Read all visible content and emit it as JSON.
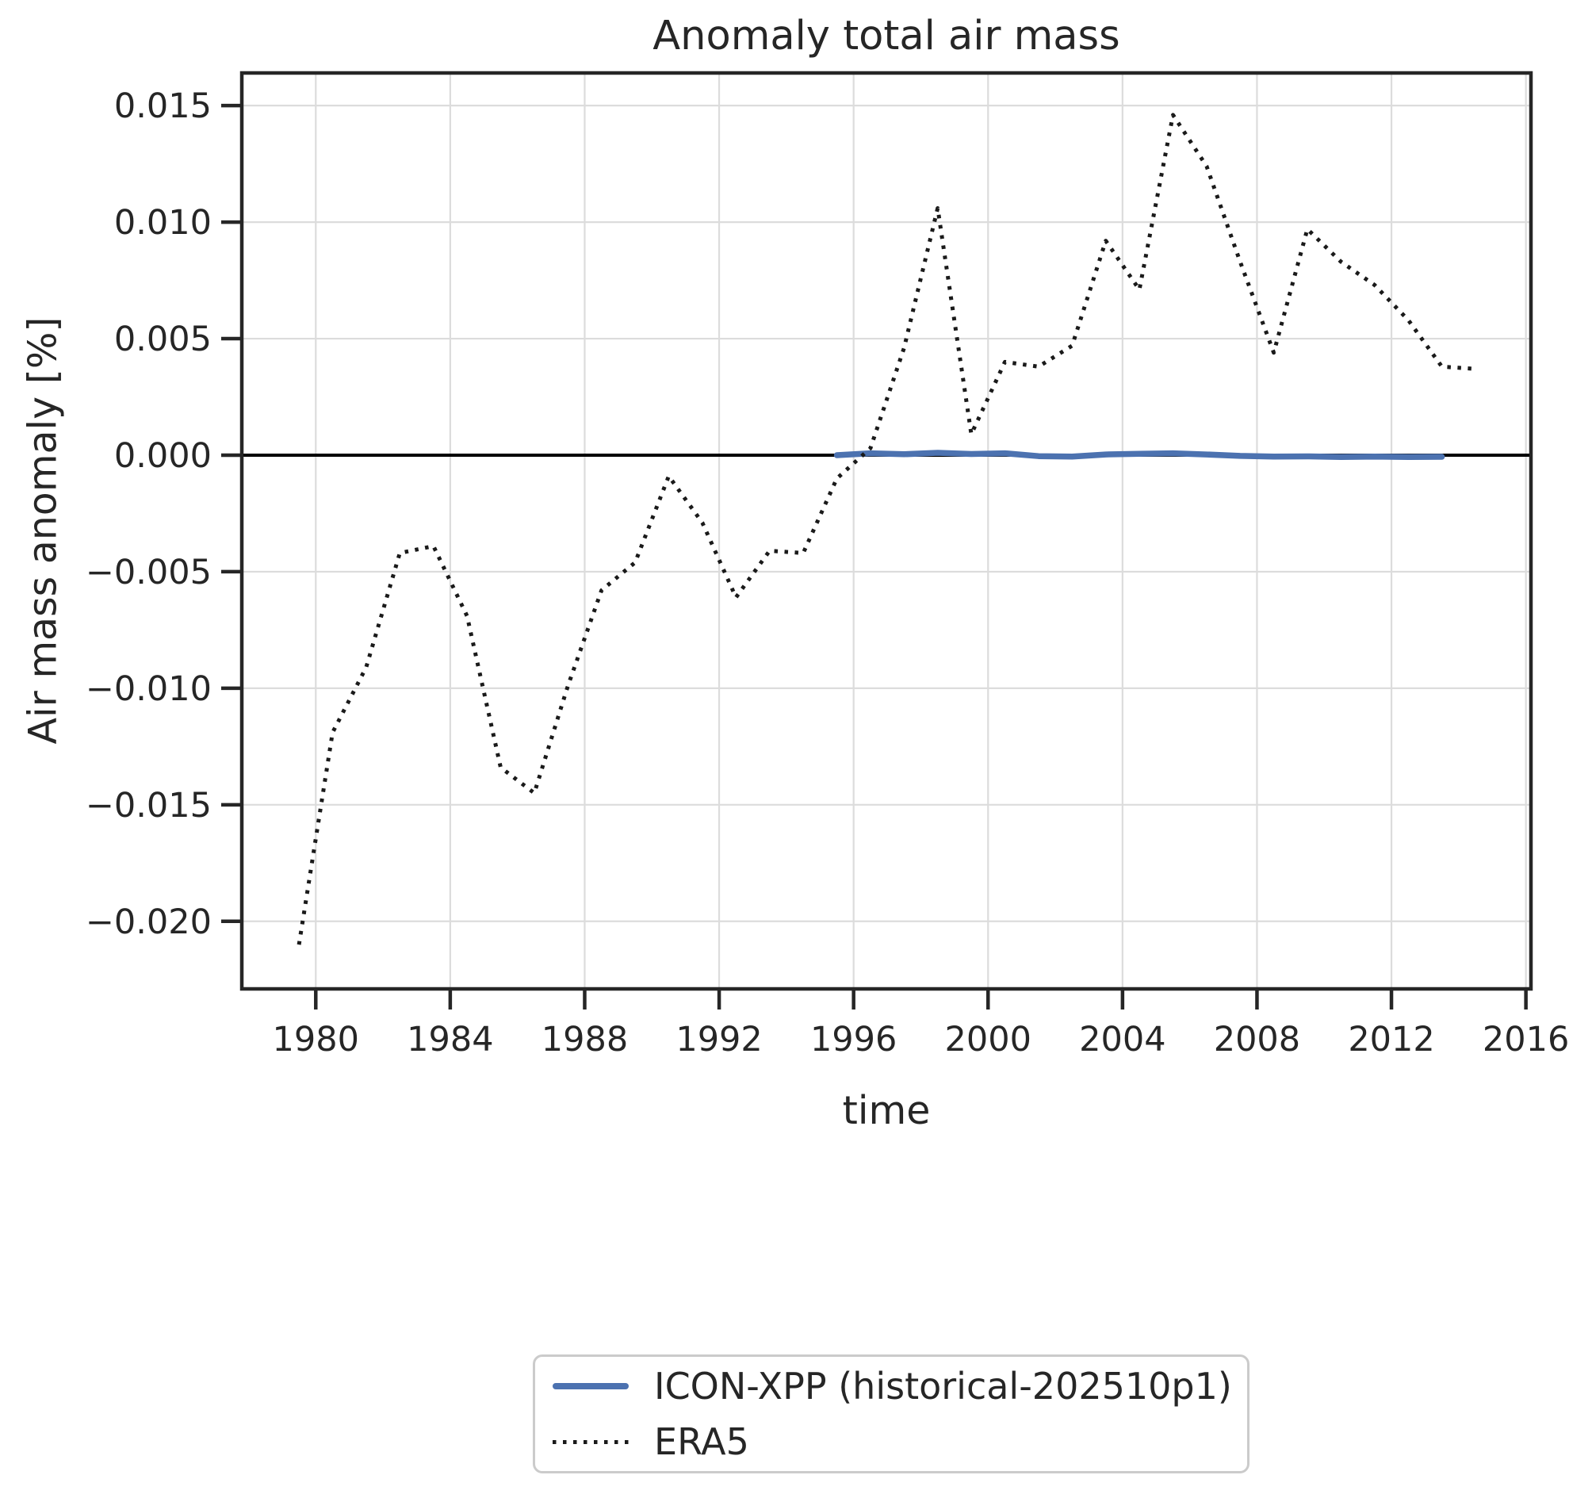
{
  "figure": {
    "title": "Anomaly total air mass",
    "xlabel": "time",
    "ylabel": "Air mass anomaly [%]"
  },
  "legend": {
    "items": [
      {
        "label": "ICON-XPP (historical-202510p1)",
        "color": "#4C72B0",
        "style": "solid"
      },
      {
        "label": "ERA5",
        "color": "#1a1a1a",
        "style": "dotted"
      }
    ]
  },
  "chart_data": {
    "type": "line",
    "title": "Anomaly total air mass",
    "xlabel": "time",
    "ylabel": "Air mass anomaly [%]",
    "xlim": [
      1977.8,
      2016.15
    ],
    "ylim": [
      -0.0229,
      0.0164
    ],
    "grid": true,
    "grid_color": "#dcdcdc",
    "zero_line": true,
    "zero_line_color": "#000000",
    "axes_edge_color": "#262626",
    "legend_position": "lower center, below axes",
    "x_ticks": [
      1980,
      1984,
      1988,
      1992,
      1996,
      2000,
      2004,
      2008,
      2012,
      2016
    ],
    "x_tick_labels": [
      "1980",
      "1984",
      "1988",
      "1992",
      "1996",
      "2000",
      "2004",
      "2008",
      "2012",
      "2016"
    ],
    "y_ticks": {
      "values": [
        0.015,
        0.01,
        0.005,
        0.0,
        -0.005,
        -0.01,
        -0.015,
        -0.02
      ],
      "labels": [
        "0.015",
        "0.010",
        "0.005",
        "0.000",
        "−0.005",
        "−0.010",
        "−0.015",
        "−0.020"
      ]
    },
    "series": [
      {
        "name": "ICON-XPP (historical-202510p1)",
        "color": "#4C72B0",
        "line_style": "solid",
        "line_width": 7.5,
        "x": [
          1995.5,
          1996.5,
          1997.5,
          1998.5,
          1999.5,
          2000.5,
          2001.5,
          2002.5,
          2003.5,
          2004.5,
          2005.5,
          2006.5,
          2007.5,
          2008.5,
          2009.5,
          2010.5,
          2011.5,
          2012.5,
          2013.5
        ],
        "y": [
          0.0,
          8e-05,
          4e-05,
          0.0001,
          5e-05,
          8e-05,
          -4e-05,
          -6e-05,
          3e-05,
          6e-05,
          8e-05,
          3e-05,
          -3e-05,
          -6e-05,
          -5e-05,
          -8e-05,
          -6e-05,
          -8e-05,
          -7e-05
        ]
      },
      {
        "name": "ERA5",
        "color": "#1a1a1a",
        "line_style": "dotted",
        "line_width": 5,
        "x": [
          1979.5,
          1980.5,
          1981.5,
          1982.5,
          1983.5,
          1984.5,
          1985.5,
          1986.5,
          1987.5,
          1988.5,
          1989.5,
          1990.5,
          1991.5,
          1992.5,
          1993.5,
          1994.5,
          1995.5,
          1996.5,
          1997.5,
          1998.5,
          1999.5,
          2000.5,
          2001.5,
          2002.5,
          2003.5,
          2004.5,
          2005.5,
          2006.5,
          2007.5,
          2008.5,
          2009.5,
          2010.5,
          2011.5,
          2012.5,
          2013.5,
          2014.5
        ],
        "y": [
          -0.021,
          -0.0119,
          -0.0091,
          -0.0042,
          -0.0039,
          -0.0069,
          -0.0134,
          -0.0145,
          -0.0099,
          -0.0058,
          -0.0046,
          -0.0009,
          -0.0029,
          -0.0061,
          -0.0041,
          -0.0042,
          -0.001,
          0.0003,
          0.0046,
          0.0106,
          0.0009,
          0.004,
          0.0038,
          0.0047,
          0.0092,
          0.0071,
          0.0146,
          0.0124,
          0.0083,
          0.0044,
          0.0097,
          0.0083,
          0.0073,
          0.0058,
          0.0038,
          0.0037
        ]
      }
    ]
  }
}
